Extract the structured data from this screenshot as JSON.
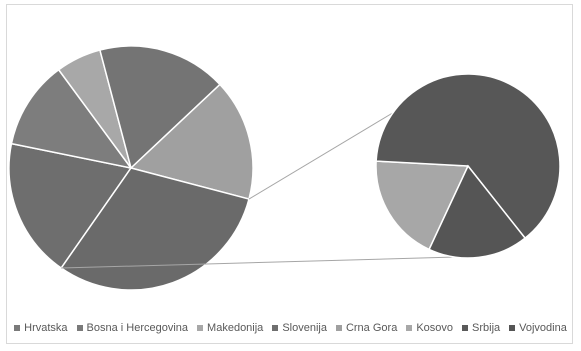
{
  "chart_data": {
    "type": "pie",
    "title": "",
    "legend_position": "bottom",
    "main_pie": {
      "slices": [
        {
          "label": "Hrvatska",
          "value": 18.5,
          "color": "#6e6e6e"
        },
        {
          "label": "Bosna i Hercegovina",
          "value": 11.7,
          "color": "#7d7d7d"
        },
        {
          "label": "Makedonija",
          "value": 6.0,
          "color": "#a8a8a8"
        },
        {
          "label": "Slovenija",
          "value": 17.1,
          "color": "#747474"
        },
        {
          "label": "Crna Gora",
          "value": 16.1,
          "color": "#a0a0a0"
        },
        {
          "label": "Other (Srbija)",
          "value": 30.6,
          "color": "#6a6a6a"
        }
      ]
    },
    "secondary_pie": {
      "slices": [
        {
          "label": "Kosovo",
          "value": 18.9,
          "color": "#a7a7a7"
        },
        {
          "label": "Srbija",
          "value": 63.5,
          "color": "#575757"
        },
        {
          "label": "Vojvodina",
          "value": 17.6,
          "color": "#555555"
        }
      ]
    },
    "legend": [
      {
        "label": "Hrvatska",
        "color": "#7a7a7a"
      },
      {
        "label": "Bosna i Hercegovina",
        "color": "#7a7a7a"
      },
      {
        "label": "Makedonija",
        "color": "#a8a8a8"
      },
      {
        "label": "Slovenija",
        "color": "#6f6f6f"
      },
      {
        "label": "Crna Gora",
        "color": "#a0a0a0"
      },
      {
        "label": "Kosovo",
        "color": "#a8a8a8"
      },
      {
        "label": "Srbija",
        "color": "#5a5a5a"
      },
      {
        "label": "Vojvodina",
        "color": "#555555"
      }
    ]
  }
}
